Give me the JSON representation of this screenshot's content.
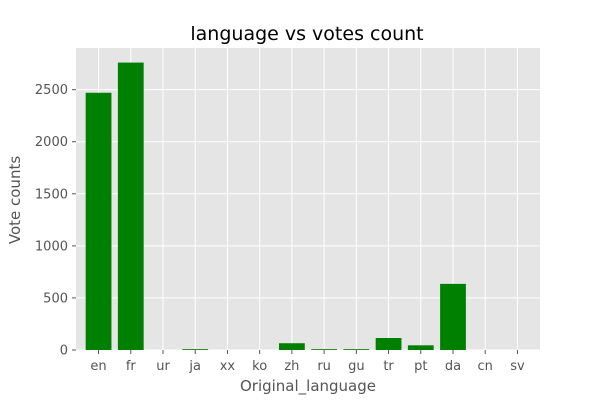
{
  "chart_data": {
    "type": "bar",
    "title": "language vs votes count",
    "xlabel": "Original_language",
    "ylabel": "Vote counts",
    "categories": [
      "en",
      "fr",
      "ur",
      "ja",
      "xx",
      "ko",
      "zh",
      "ru",
      "gu",
      "tr",
      "pt",
      "da",
      "cn",
      "sv"
    ],
    "values": [
      2470,
      2760,
      0,
      8,
      0,
      0,
      65,
      8,
      8,
      115,
      45,
      635,
      0,
      0
    ],
    "ylim": [
      0,
      2900
    ],
    "yticks": [
      0,
      500,
      1000,
      1500,
      2000,
      2500
    ],
    "grid": true,
    "colors": {
      "bar": "#008000",
      "plot_background": "#e5e5e5",
      "grid": "#ffffff"
    }
  }
}
